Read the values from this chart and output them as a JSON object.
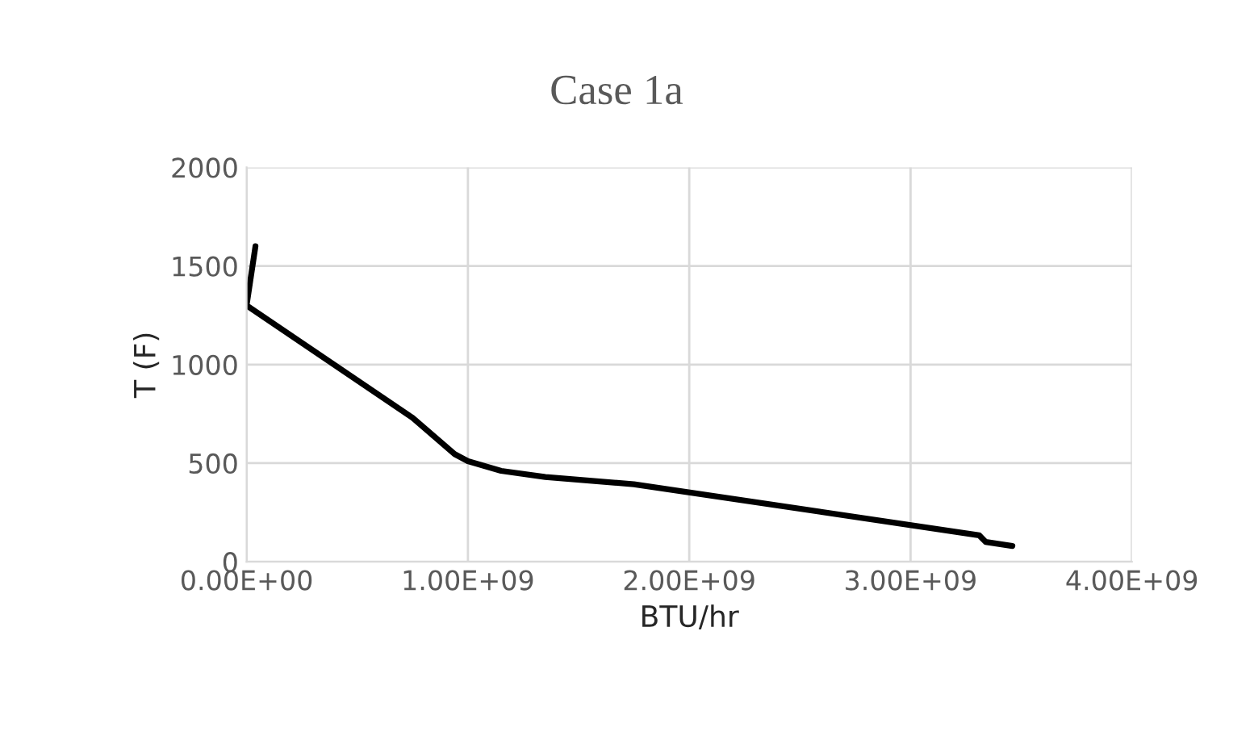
{
  "chart_data": {
    "type": "line",
    "title": "Case 1a",
    "xlabel": "BTU/hr",
    "ylabel": "T (F)",
    "series": [
      {
        "color": "#000000",
        "x": [
          40000000.0,
          0.0,
          750000000.0,
          940000000.0,
          1000000000.0,
          1150000000.0,
          1350000000.0,
          1750000000.0,
          3310000000.0,
          3340000000.0,
          3460000000.0
        ],
        "values": [
          1600,
          1300,
          730,
          546,
          510,
          461,
          430,
          393,
          134,
          100,
          80
        ]
      }
    ],
    "xlim": [
      0,
      4000000000.0
    ],
    "xticks": [
      {
        "value": 0,
        "label": "0.00E+00"
      },
      {
        "value": 1000000000.0,
        "label": "1.00E+09"
      },
      {
        "value": 2000000000.0,
        "label": "2.00E+09"
      },
      {
        "value": 3000000000.0,
        "label": "3.00E+09"
      },
      {
        "value": 4000000000.0,
        "label": "4.00E+09"
      }
    ],
    "ylim": [
      0,
      2000
    ],
    "yticks": [
      0,
      500,
      1000,
      1500,
      2000
    ],
    "grid": true,
    "marker": "none",
    "line_style": "solid"
  }
}
